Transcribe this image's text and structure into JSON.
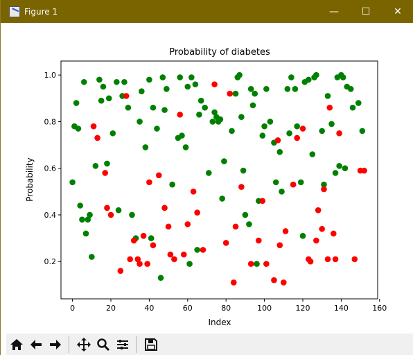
{
  "window": {
    "title": "Figure 1",
    "minimize": "—",
    "maximize": "☐",
    "close": "✕"
  },
  "toolbar": {
    "icons": [
      "home-icon",
      "back-arrow-icon",
      "forward-arrow-icon",
      "pan-icon",
      "zoom-icon",
      "configure-subplots-icon",
      "save-icon"
    ]
  },
  "colors": {
    "green": "#008000",
    "red": "#ff0000",
    "titlebar": "#7a6400"
  },
  "chart_data": {
    "type": "scatter",
    "title": "Probability of diabetes",
    "xlabel": "Index",
    "ylabel": "Probability",
    "xlim": [
      -6,
      159
    ],
    "ylim": [
      0.04,
      1.06
    ],
    "xticks": [
      0,
      20,
      40,
      60,
      80,
      100,
      120,
      140,
      160
    ],
    "yticks": [
      0.2,
      0.4,
      0.6,
      0.8,
      1.0
    ],
    "xtick_labels": [
      "0",
      "20",
      "40",
      "60",
      "80",
      "100",
      "120",
      "140",
      "160"
    ],
    "ytick_labels": [
      "0.2",
      "0.4",
      "0.6",
      "0.8",
      "1.0"
    ],
    "grid": false,
    "series": [
      {
        "color": "#008000",
        "x": [
          0,
          1,
          2,
          3,
          4,
          5,
          6,
          7,
          8,
          9,
          10,
          12,
          14,
          15,
          16,
          18,
          19,
          21,
          23,
          24,
          26,
          27,
          29,
          31,
          33,
          35,
          36,
          38,
          40,
          41,
          42,
          44,
          46,
          47,
          48,
          49,
          52,
          55,
          56,
          57,
          59,
          60,
          61,
          62,
          64,
          65,
          66,
          67,
          69,
          71,
          73,
          74,
          75,
          76,
          77,
          78,
          79,
          83,
          85,
          86,
          87,
          88,
          89,
          90,
          92,
          93,
          94,
          95,
          96,
          97,
          99,
          100,
          101,
          103,
          105,
          106,
          108,
          109,
          112,
          113,
          114,
          116,
          117,
          119,
          120,
          121,
          123,
          125,
          126,
          127,
          130,
          131,
          133,
          135,
          137,
          138,
          139,
          140,
          141,
          142,
          143,
          145,
          146,
          149,
          151
        ],
        "y": [
          0.54,
          0.78,
          0.88,
          0.77,
          0.44,
          0.38,
          0.97,
          0.32,
          0.38,
          0.4,
          0.22,
          0.61,
          0.98,
          0.89,
          0.95,
          0.62,
          0.9,
          0.75,
          0.97,
          0.42,
          0.91,
          0.97,
          0.86,
          0.4,
          0.3,
          0.8,
          0.93,
          0.69,
          0.98,
          0.3,
          0.86,
          0.77,
          0.13,
          0.99,
          0.85,
          0.94,
          0.53,
          0.73,
          0.99,
          0.74,
          0.69,
          0.95,
          0.19,
          0.99,
          0.96,
          0.25,
          0.83,
          0.89,
          0.86,
          0.58,
          0.8,
          0.84,
          0.82,
          0.8,
          0.81,
          0.47,
          0.63,
          0.76,
          0.92,
          0.99,
          1.0,
          0.82,
          0.59,
          0.4,
          0.36,
          0.94,
          0.87,
          0.92,
          0.19,
          0.46,
          0.74,
          0.78,
          0.94,
          0.8,
          0.71,
          0.54,
          0.67,
          0.5,
          0.94,
          0.75,
          0.99,
          0.94,
          0.78,
          0.54,
          0.31,
          0.97,
          0.98,
          0.66,
          0.99,
          1.0,
          0.76,
          0.53,
          0.91,
          0.79,
          0.58,
          0.99,
          0.61,
          1.0,
          0.99,
          0.6,
          0.95,
          0.94,
          0.86,
          0.88,
          0.76
        ]
      },
      {
        "color": "#ff0000",
        "x": [
          11,
          13,
          17,
          18,
          20,
          25,
          28,
          30,
          32,
          34,
          35,
          37,
          39,
          40,
          42,
          45,
          48,
          50,
          51,
          53,
          56,
          58,
          60,
          63,
          65,
          68,
          74,
          80,
          82,
          84,
          85,
          88,
          93,
          97,
          99,
          101,
          105,
          107,
          108,
          110,
          111,
          115,
          117,
          120,
          123,
          124,
          127,
          128,
          130,
          131,
          133,
          134,
          136,
          137,
          139,
          147,
          150,
          152
        ],
        "y": [
          0.78,
          0.73,
          0.58,
          0.43,
          0.4,
          0.16,
          0.91,
          0.21,
          0.29,
          0.21,
          0.19,
          0.31,
          0.19,
          0.54,
          0.27,
          0.57,
          0.43,
          0.35,
          0.23,
          0.21,
          0.83,
          0.23,
          0.36,
          0.5,
          0.41,
          0.25,
          0.96,
          0.28,
          0.92,
          0.11,
          0.35,
          0.52,
          0.19,
          0.29,
          0.46,
          0.19,
          0.12,
          0.72,
          0.27,
          0.11,
          0.33,
          0.53,
          0.73,
          0.77,
          0.21,
          0.2,
          0.29,
          0.42,
          0.34,
          0.51,
          0.21,
          0.86,
          0.32,
          0.21,
          0.75,
          0.21,
          0.59,
          0.59
        ]
      }
    ]
  }
}
